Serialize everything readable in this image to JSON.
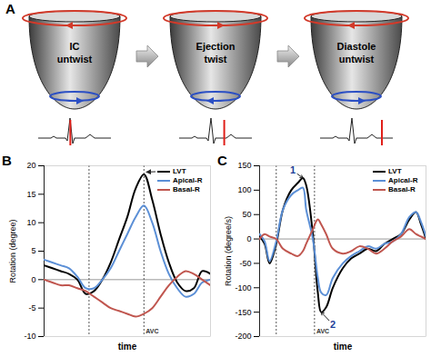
{
  "diagram": {
    "panel": "A",
    "stages": [
      {
        "lines": [
          "IC",
          "untwist"
        ]
      },
      {
        "lines": [
          "Ejection",
          "twist"
        ]
      },
      {
        "lines": [
          "Diastole",
          "untwist"
        ]
      }
    ]
  },
  "chart_data": [
    {
      "panel": "B",
      "type": "line",
      "x_label": "time",
      "y_label": "Rotation (degree)",
      "xlim": [
        0,
        100
      ],
      "ylim": [
        -10,
        20
      ],
      "yticks": [
        -10,
        -5,
        0,
        5,
        10,
        15,
        20
      ],
      "tick_labels": "y",
      "legend": "top-right",
      "x": [
        0,
        5,
        10,
        15,
        20,
        25,
        30,
        35,
        40,
        45,
        50,
        55,
        60,
        65,
        70,
        75,
        80,
        85,
        90,
        95,
        100
      ],
      "series": [
        {
          "name": "LVT",
          "color": "#000000",
          "values": [
            2.5,
            2,
            1.5,
            1,
            0,
            -2.5,
            -2,
            0,
            3,
            7,
            11,
            16,
            18.5,
            14,
            8,
            3,
            -0.5,
            -2,
            -1.5,
            1.5,
            1
          ]
        },
        {
          "name": "Apical-R",
          "color": "#5b8fd6",
          "values": [
            3.5,
            3,
            2.5,
            2,
            0.5,
            -1.5,
            -1.5,
            0,
            2,
            5,
            8,
            11,
            13,
            10,
            5,
            1,
            -1.5,
            -3,
            -2.5,
            -0.5,
            0
          ]
        },
        {
          "name": "Basal-R",
          "color": "#c0564f",
          "values": [
            0,
            -0.5,
            -1,
            -1,
            -1.5,
            -2,
            -3,
            -4,
            -5,
            -5.5,
            -6,
            -6.5,
            -6,
            -5,
            -3,
            -1,
            0.5,
            1.5,
            1,
            0,
            -1
          ]
        }
      ],
      "vlines": [
        {
          "x": 27
        },
        {
          "x": 60,
          "label": "AVC"
        }
      ]
    },
    {
      "panel": "C",
      "type": "line",
      "x_label": "time",
      "y_label": "Rotation (degree/s)",
      "xlim": [
        0,
        100
      ],
      "ylim": [
        -200,
        150
      ],
      "yticks": [
        -200,
        -150,
        -100,
        -50,
        0,
        50,
        100,
        150
      ],
      "tick_labels": "y",
      "legend": "top-right",
      "x": [
        0,
        3,
        6,
        10,
        14,
        19,
        23,
        26,
        28,
        32,
        35,
        37,
        40,
        44,
        50,
        55,
        60,
        65,
        70,
        75,
        80,
        85,
        90,
        94,
        97,
        100
      ],
      "series": [
        {
          "name": "LVT",
          "color": "#000000",
          "values": [
            5,
            -10,
            -50,
            -10,
            60,
            100,
            115,
            125,
            110,
            10,
            -110,
            -150,
            -140,
            -100,
            -60,
            -40,
            -30,
            -20,
            -25,
            -10,
            0,
            10,
            40,
            55,
            30,
            0
          ]
        },
        {
          "name": "Apical-R",
          "color": "#5b8fd6",
          "values": [
            10,
            -5,
            -45,
            -5,
            60,
            90,
            100,
            105,
            60,
            0,
            -80,
            -110,
            -115,
            -80,
            -50,
            -35,
            -25,
            -15,
            -20,
            -10,
            -5,
            10,
            45,
            55,
            35,
            5
          ]
        },
        {
          "name": "Basal-R",
          "color": "#c0564f",
          "values": [
            0,
            10,
            5,
            0,
            -20,
            -30,
            -35,
            -25,
            -10,
            20,
            40,
            30,
            10,
            -20,
            -30,
            -25,
            -15,
            -20,
            -30,
            -20,
            -5,
            5,
            20,
            10,
            5,
            0
          ]
        }
      ],
      "vlines": [
        {
          "x": 10
        },
        {
          "x": 33,
          "label": "AVC"
        }
      ],
      "annotations": [
        {
          "text": "1",
          "x": 20,
          "y": 140,
          "color": "#1f3f99",
          "arrow_to": [
            26,
            125
          ]
        },
        {
          "text": "2",
          "x": 44,
          "y": -175,
          "color": "#1f3f99",
          "arrow_to": [
            37,
            -150
          ]
        }
      ]
    }
  ]
}
